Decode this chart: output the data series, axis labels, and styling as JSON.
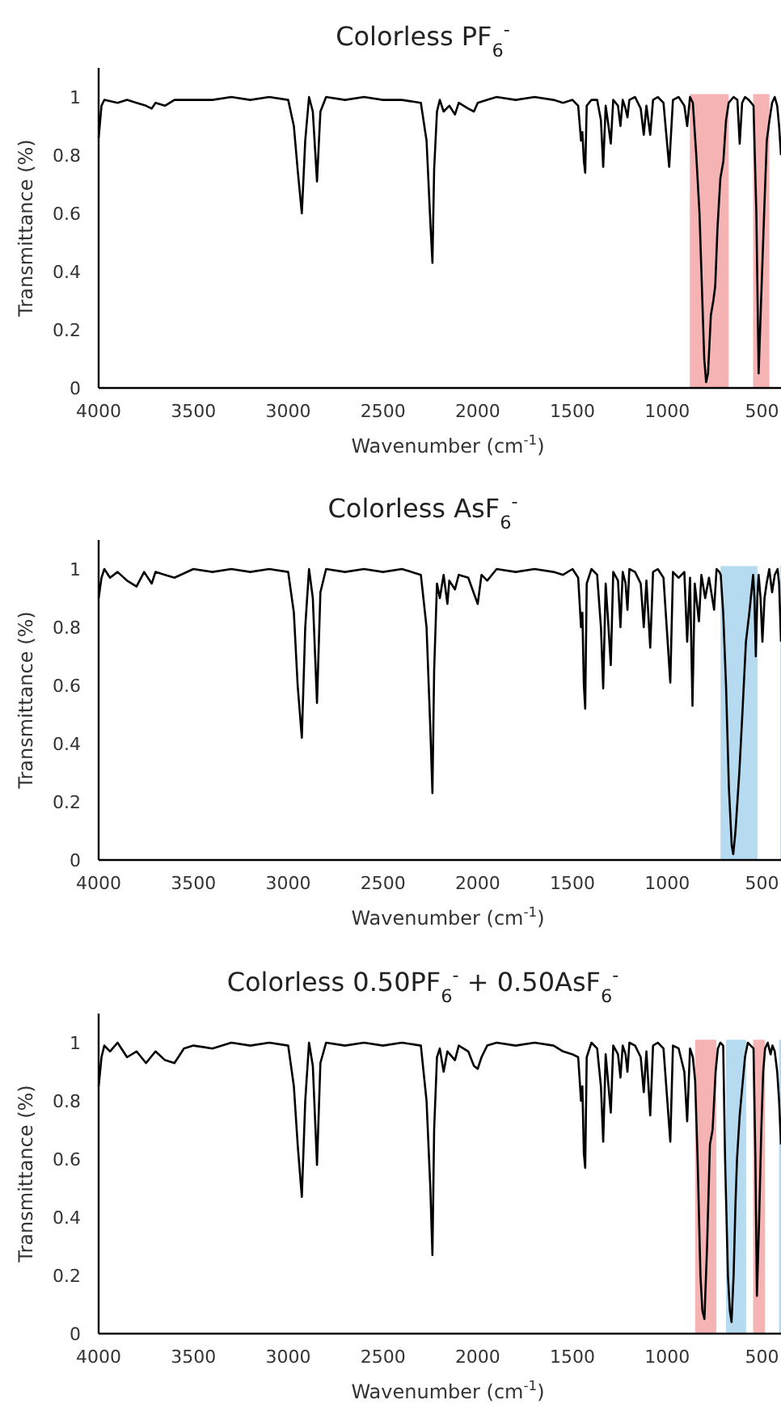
{
  "chart_data": [
    {
      "type": "line",
      "title": "Colorless PF$_{6}$$^{-}$",
      "xlabel": "Wavenumber (cm$^{-1}$)",
      "ylabel": "Transmittance (%)",
      "xlim": [
        4000,
        400
      ],
      "xticks": [
        4000,
        3500,
        3000,
        2500,
        2000,
        1500,
        1000,
        500
      ],
      "ylim": [
        0,
        1.1
      ],
      "yticks": [
        0,
        0.2,
        0.4,
        0.6,
        0.8,
        1
      ],
      "bands": [
        {
          "axis": "x",
          "from": 881,
          "to": 676,
          "color": "#f4a6a6"
        },
        {
          "axis": "x",
          "from": 547,
          "to": 461,
          "color": "#f4a6a6"
        }
      ],
      "series": [
        {
          "color": "#000000",
          "x": [
            4000,
            3985,
            3970,
            3900,
            3850,
            3800,
            3750,
            3720,
            3700,
            3650,
            3600,
            3500,
            3400,
            3300,
            3200,
            3100,
            3000,
            2970,
            2950,
            2928,
            2910,
            2890,
            2870,
            2848,
            2830,
            2800,
            2700,
            2600,
            2500,
            2400,
            2300,
            2270,
            2250,
            2239,
            2230,
            2215,
            2200,
            2180,
            2150,
            2120,
            2100,
            2050,
            2020,
            2000,
            1950,
            1900,
            1800,
            1700,
            1600,
            1550,
            1500,
            1470,
            1455,
            1448,
            1440,
            1433,
            1425,
            1400,
            1370,
            1350,
            1338,
            1325,
            1310,
            1298,
            1285,
            1260,
            1247,
            1235,
            1220,
            1210,
            1200,
            1170,
            1140,
            1124,
            1110,
            1090,
            1075,
            1050,
            1020,
            990,
            970,
            940,
            910,
            895,
            880,
            865,
            847,
            830,
            815,
            805,
            795,
            785,
            770,
            757,
            747,
            735,
            720,
            704,
            690,
            676,
            650,
            630,
            618,
            605,
            590,
            570,
            545,
            530,
            518,
            505,
            489,
            475,
            461,
            447,
            433,
            420,
            410,
            400
          ],
          "values": [
            0.86,
            0.97,
            0.99,
            0.98,
            0.99,
            0.98,
            0.97,
            0.96,
            0.98,
            0.97,
            0.99,
            0.99,
            0.99,
            1.0,
            0.99,
            1.0,
            0.99,
            0.9,
            0.75,
            0.6,
            0.85,
            1.0,
            0.95,
            0.71,
            0.95,
            1.0,
            0.99,
            1.0,
            0.99,
            0.99,
            0.98,
            0.85,
            0.57,
            0.43,
            0.75,
            0.95,
            0.99,
            0.95,
            0.97,
            0.94,
            0.98,
            0.96,
            0.95,
            0.98,
            0.99,
            1.0,
            0.99,
            1.0,
            0.99,
            0.98,
            0.99,
            0.97,
            0.85,
            0.88,
            0.78,
            0.74,
            0.97,
            0.99,
            0.99,
            0.92,
            0.76,
            0.97,
            0.9,
            0.84,
            0.99,
            0.97,
            0.9,
            0.99,
            0.96,
            0.93,
            0.99,
            1.0,
            0.96,
            0.87,
            0.97,
            0.87,
            0.99,
            1.0,
            0.98,
            0.76,
            0.99,
            1.0,
            0.97,
            0.9,
            1.0,
            0.98,
            0.8,
            0.6,
            0.3,
            0.1,
            0.02,
            0.05,
            0.25,
            0.3,
            0.35,
            0.55,
            0.72,
            0.78,
            0.92,
            0.98,
            1.0,
            0.99,
            0.84,
            0.98,
            1.0,
            0.99,
            0.97,
            0.6,
            0.05,
            0.3,
            0.6,
            0.85,
            0.92,
            0.98,
            1.0,
            0.97,
            0.9,
            0.8
          ]
        }
      ]
    },
    {
      "type": "line",
      "title": "Colorless AsF$_{6}$$^{-}$",
      "xlabel": "Wavenumber (cm$^{-1}$)",
      "ylabel": "Transmittance (%)",
      "xlim": [
        4000,
        400
      ],
      "xticks": [
        4000,
        3500,
        3000,
        2500,
        2000,
        1500,
        1000,
        500
      ],
      "ylim": [
        0,
        1.1
      ],
      "yticks": [
        0,
        0.2,
        0.4,
        0.6,
        0.8,
        1
      ],
      "bands": [
        {
          "axis": "x",
          "from": 719,
          "to": 524,
          "color": "#a9d3ec"
        },
        {
          "axis": "x",
          "from": 404,
          "to": 400,
          "color": "#a9d3ec"
        }
      ],
      "series": [
        {
          "color": "#000000",
          "x": [
            4000,
            3985,
            3970,
            3940,
            3900,
            3850,
            3800,
            3760,
            3720,
            3700,
            3650,
            3600,
            3500,
            3400,
            3300,
            3200,
            3100,
            3000,
            2970,
            2950,
            2928,
            2910,
            2890,
            2870,
            2848,
            2830,
            2800,
            2700,
            2600,
            2500,
            2400,
            2300,
            2270,
            2250,
            2239,
            2230,
            2215,
            2200,
            2180,
            2160,
            2150,
            2120,
            2100,
            2050,
            2000,
            1980,
            1950,
            1900,
            1800,
            1700,
            1600,
            1550,
            1500,
            1470,
            1455,
            1448,
            1440,
            1433,
            1425,
            1400,
            1370,
            1350,
            1338,
            1325,
            1310,
            1298,
            1285,
            1260,
            1247,
            1235,
            1220,
            1210,
            1200,
            1170,
            1140,
            1124,
            1110,
            1090,
            1075,
            1050,
            1020,
            984,
            970,
            940,
            910,
            895,
            880,
            867,
            855,
            833,
            820,
            800,
            780,
            753,
            740,
            725,
            718,
            705,
            690,
            675,
            660,
            652,
            640,
            620,
            604,
            585,
            567,
            547,
            540,
            533,
            525,
            518,
            508,
            498,
            487,
            476,
            462,
            447,
            433,
            418,
            410,
            400
          ],
          "values": [
            0.9,
            0.97,
            1.0,
            0.97,
            0.99,
            0.96,
            0.94,
            0.99,
            0.95,
            0.99,
            0.98,
            0.97,
            1.0,
            0.99,
            1.0,
            0.99,
            1.0,
            0.99,
            0.85,
            0.6,
            0.42,
            0.8,
            1.0,
            0.9,
            0.54,
            0.92,
            1.0,
            0.99,
            1.0,
            0.99,
            1.0,
            0.98,
            0.8,
            0.45,
            0.23,
            0.65,
            0.95,
            0.9,
            0.98,
            0.88,
            0.96,
            0.93,
            0.98,
            0.97,
            0.88,
            0.98,
            0.96,
            1.0,
            0.99,
            1.0,
            0.99,
            0.98,
            1.0,
            0.97,
            0.8,
            0.85,
            0.6,
            0.52,
            0.95,
            1.0,
            0.98,
            0.8,
            0.59,
            0.95,
            0.8,
            0.67,
            0.99,
            0.96,
            0.8,
            0.99,
            0.95,
            0.86,
            1.0,
            0.99,
            0.95,
            0.8,
            0.96,
            0.73,
            0.99,
            1.0,
            0.97,
            0.61,
            0.99,
            0.97,
            0.99,
            0.75,
            0.97,
            0.53,
            0.95,
            0.82,
            0.98,
            0.9,
            0.97,
            0.86,
            1.0,
            0.99,
            0.98,
            0.85,
            0.6,
            0.25,
            0.05,
            0.02,
            0.1,
            0.3,
            0.5,
            0.75,
            0.85,
            0.98,
            0.9,
            0.7,
            0.9,
            0.98,
            0.9,
            0.75,
            0.9,
            0.95,
            1.0,
            0.92,
            0.98,
            1.0,
            0.95,
            0.75
          ]
        }
      ]
    },
    {
      "type": "line",
      "title": "Colorless 0.50PF$_{6}$$^{-}$ + 0.50AsF$_{6}$$^{-}$",
      "xlabel": "Wavenumber (cm$^{-1}$)",
      "ylabel": "Transmittance (%)",
      "xlim": [
        4000,
        400
      ],
      "xticks": [
        4000,
        3500,
        3000,
        2500,
        2000,
        1500,
        1000,
        500
      ],
      "ylim": [
        0,
        1.1
      ],
      "yticks": [
        0,
        0.2,
        0.4,
        0.6,
        0.8,
        1
      ],
      "bands": [
        {
          "axis": "x",
          "from": 853,
          "to": 741,
          "color": "#f4a6a6"
        },
        {
          "axis": "x",
          "from": 690,
          "to": 584,
          "color": "#a9d3ec"
        },
        {
          "axis": "x",
          "from": 547,
          "to": 484,
          "color": "#f4a6a6"
        },
        {
          "axis": "x",
          "from": 410,
          "to": 400,
          "color": "#a9d3ec"
        }
      ],
      "series": [
        {
          "color": "#000000",
          "x": [
            4000,
            3985,
            3970,
            3940,
            3900,
            3850,
            3800,
            3750,
            3700,
            3650,
            3600,
            3550,
            3500,
            3400,
            3300,
            3200,
            3100,
            3000,
            2970,
            2950,
            2928,
            2910,
            2890,
            2870,
            2848,
            2830,
            2800,
            2700,
            2600,
            2500,
            2400,
            2300,
            2270,
            2250,
            2239,
            2230,
            2215,
            2200,
            2180,
            2160,
            2120,
            2100,
            2050,
            2020,
            2000,
            1980,
            1950,
            1900,
            1800,
            1700,
            1600,
            1550,
            1500,
            1470,
            1455,
            1448,
            1440,
            1433,
            1425,
            1400,
            1370,
            1350,
            1338,
            1325,
            1310,
            1298,
            1285,
            1260,
            1247,
            1235,
            1220,
            1210,
            1200,
            1170,
            1140,
            1124,
            1110,
            1090,
            1075,
            1050,
            1020,
            984,
            970,
            940,
            910,
            895,
            880,
            865,
            853,
            840,
            825,
            815,
            804,
            790,
            775,
            761,
            745,
            733,
            720,
            705,
            695,
            680,
            670,
            661,
            650,
            640,
            632,
            618,
            604,
            590,
            575,
            560,
            545,
            535,
            527,
            515,
            504,
            494,
            484,
            470,
            455,
            445,
            433,
            420,
            410,
            400
          ],
          "values": [
            0.85,
            0.95,
            0.99,
            0.97,
            1.0,
            0.95,
            0.97,
            0.93,
            0.97,
            0.94,
            0.93,
            0.98,
            0.99,
            0.98,
            1.0,
            0.99,
            1.0,
            0.99,
            0.85,
            0.65,
            0.47,
            0.8,
            1.0,
            0.92,
            0.58,
            0.93,
            1.0,
            0.99,
            1.0,
            0.99,
            1.0,
            0.99,
            0.8,
            0.5,
            0.27,
            0.7,
            0.95,
            0.98,
            0.9,
            0.97,
            0.94,
            0.99,
            0.97,
            0.92,
            0.91,
            0.95,
            0.99,
            1.0,
            0.99,
            1.0,
            0.99,
            0.97,
            0.96,
            0.95,
            0.8,
            0.85,
            0.62,
            0.57,
            0.95,
            1.0,
            0.98,
            0.85,
            0.66,
            0.96,
            0.85,
            0.76,
            0.99,
            0.96,
            0.88,
            0.99,
            0.96,
            0.9,
            1.0,
            0.99,
            0.95,
            0.83,
            0.97,
            0.75,
            0.99,
            1.0,
            0.98,
            0.66,
            0.99,
            0.98,
            0.9,
            0.73,
            0.98,
            0.95,
            0.87,
            0.6,
            0.2,
            0.08,
            0.05,
            0.3,
            0.65,
            0.7,
            0.9,
            0.98,
            1.0,
            0.99,
            0.6,
            0.2,
            0.08,
            0.04,
            0.2,
            0.45,
            0.6,
            0.75,
            0.85,
            0.95,
            1.0,
            0.99,
            0.98,
            0.6,
            0.13,
            0.4,
            0.7,
            0.9,
            0.98,
            1.0,
            0.96,
            0.99,
            0.97,
            0.9,
            0.8,
            0.65
          ]
        }
      ]
    }
  ]
}
